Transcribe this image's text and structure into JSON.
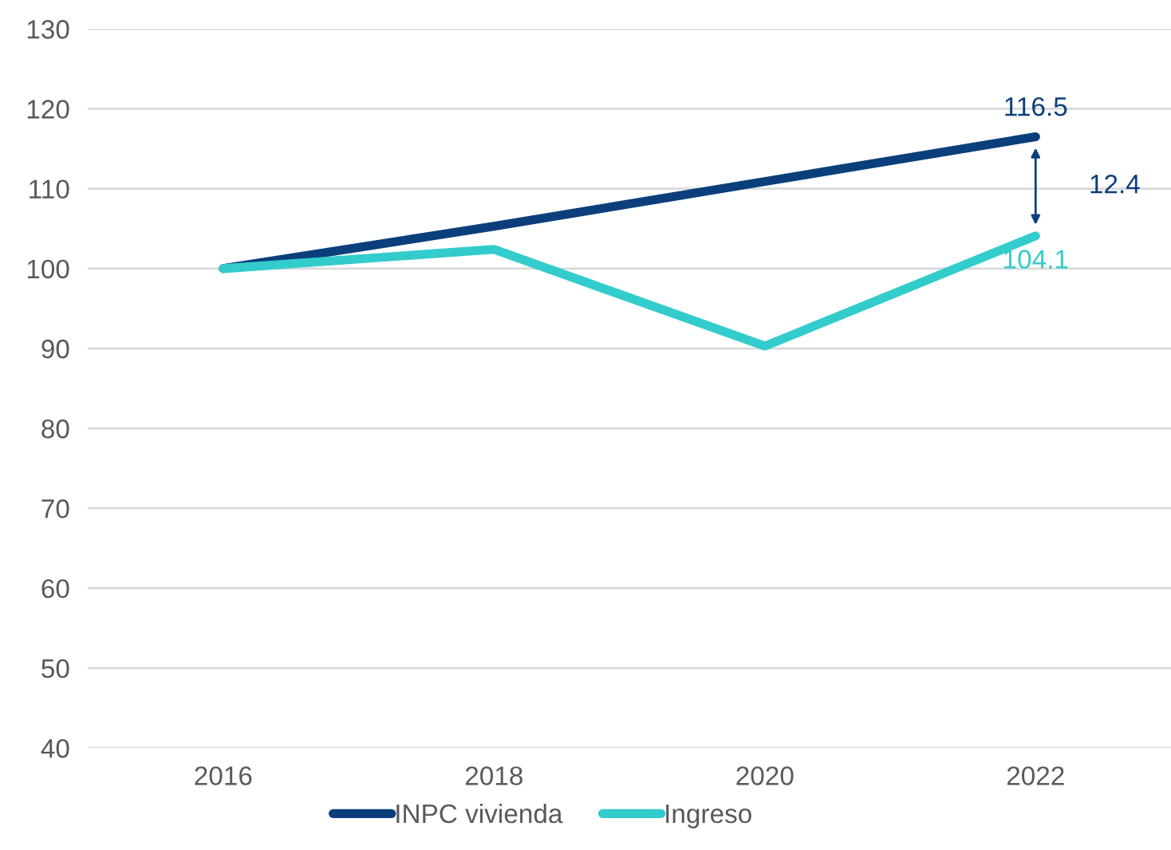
{
  "chart_data": {
    "type": "line",
    "categories": [
      "2016",
      "2018",
      "2020",
      "2022"
    ],
    "series": [
      {
        "name": "INPC vivienda",
        "color": "#0b3f7c",
        "values": [
          100,
          105.3,
          110.9,
          116.5
        ],
        "value_labels": [
          null,
          null,
          null,
          "116.5"
        ]
      },
      {
        "name": "Ingreso",
        "color": "#33cccc",
        "values": [
          100,
          102.4,
          90.3,
          104.1
        ],
        "value_labels": [
          null,
          null,
          null,
          "104.1"
        ]
      }
    ],
    "ylim": [
      40,
      130
    ],
    "yticks": [
      40,
      50,
      60,
      70,
      80,
      90,
      100,
      110,
      120,
      130
    ],
    "grid": "y",
    "legend": "bottom",
    "marker": "none",
    "line_style": "solid",
    "annotations": [
      "12.4"
    ]
  }
}
